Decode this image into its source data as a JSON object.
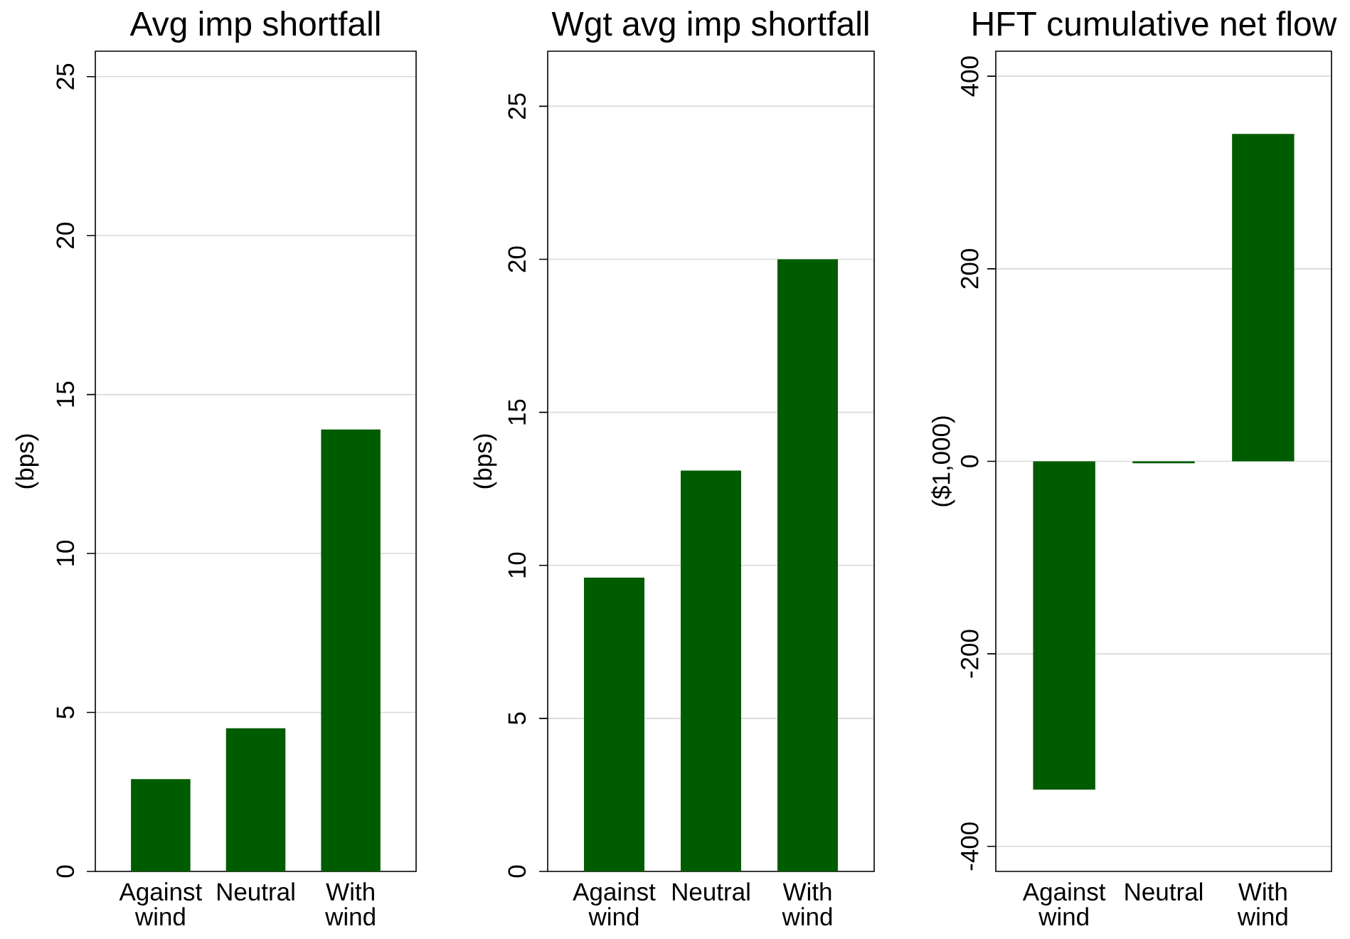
{
  "chart_data": [
    {
      "type": "bar",
      "title": "Avg imp shortfall",
      "ylabel": "(bps)",
      "categories": [
        "Against wind",
        "Neutral",
        "With wind"
      ],
      "values": [
        2.9,
        4.5,
        13.9
      ],
      "color": "#005c00",
      "ylim": [
        0,
        25.8
      ],
      "yticks": [
        0,
        5,
        10,
        15,
        20,
        25
      ],
      "grid": "y"
    },
    {
      "type": "bar",
      "title": "Wgt avg imp shortfall",
      "ylabel": "(bps)",
      "categories": [
        "Against wind",
        "Neutral",
        "With wind"
      ],
      "values": [
        9.6,
        13.1,
        20.0
      ],
      "color": "#005c00",
      "ylim": [
        0,
        26.8
      ],
      "yticks": [
        0,
        5,
        10,
        15,
        20,
        25
      ],
      "grid": "y"
    },
    {
      "type": "bar",
      "title": "HFT cumulative net flow",
      "ylabel": "($1,000)",
      "categories": [
        "Against wind",
        "Neutral",
        "With wind"
      ],
      "values": [
        -341,
        -2,
        340
      ],
      "color": "#005c00",
      "ylim": [
        -426,
        426
      ],
      "yticks": [
        -400,
        -200,
        0,
        200,
        400
      ],
      "grid": "y"
    }
  ]
}
